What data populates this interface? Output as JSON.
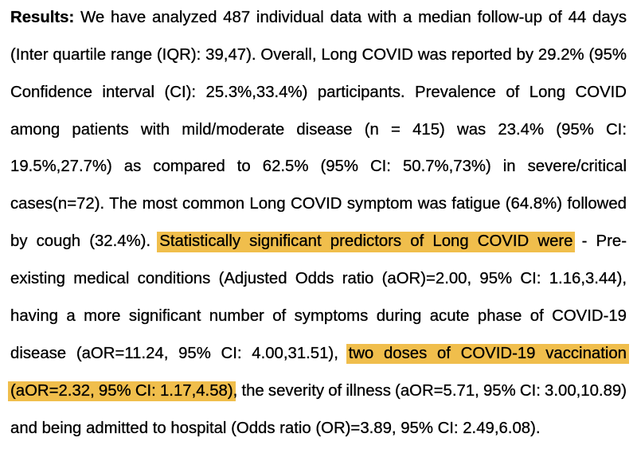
{
  "page": {
    "background_color": "#ffffff",
    "text_color": "#000000",
    "highlight_color": "#f0be4c"
  },
  "document": {
    "section_label": "Results:",
    "full_text": "Results: We have analyzed 487 individual data with a median follow-up of 44 days (Inter quartile range (IQR): 39,47). Overall, Long COVID was reported by 29.2% (95% Confidence interval (CI): 25.3%,33.4%) participants. Prevalence of Long COVID among patients with mild/moderate disease (n = 415) was 23.4% (95% CI: 19.5%,27.7%) as compared to 62.5% (95% CI: 50.7%,73%) in severe/critical cases(n=72). The most common Long COVID symptom was fatigue (64.8%) followed by cough (32.4%). Statistically significant predictors of Long COVID were - Pre-existing medical conditions (Adjusted Odds ratio (aOR)=2.00, 95% CI: 1.16,3.44), having a more significant number of symptoms during acute phase of COVID-19 disease (aOR=11.24, 95% CI: 4.00,31.51), two doses of COVID-19 vaccination (aOR=2.32, 95% CI: 1.17,4.58), the severity of illness (aOR=5.71, 95% CI: 3.00,10.89) and being admitted to hospital (Odds ratio (OR)=3.89, 95% CI: 2.49,6.08).",
    "highlighted_phrases": [
      "Statistically significant predictors of Long COVID were",
      "two doses of COVID-19 vaccination (aOR=2.32, 95% CI: 1.17,4.58)"
    ],
    "lines": [
      {
        "justify": true,
        "segments": [
          {
            "text": "Results:",
            "bold": true
          },
          {
            "text": " We have analyzed 487 individual data with a median follow-up of 44 days"
          }
        ]
      },
      {
        "justify": true,
        "segments": [
          {
            "text": "(Inter quartile range (IQR): 39,47). Overall, Long COVID was reported by 29.2% (95%"
          }
        ]
      },
      {
        "justify": true,
        "segments": [
          {
            "text": "Confidence interval (CI): 25.3%,33.4%) participants. Prevalence of Long COVID"
          }
        ]
      },
      {
        "justify": true,
        "segments": [
          {
            "text": "among patients with mild/moderate disease (n = 415) was 23.4% (95% CI:"
          }
        ]
      },
      {
        "justify": true,
        "segments": [
          {
            "text": "19.5%,27.7%) as compared to 62.5% (95% CI: 50.7%,73%) in severe/critical"
          }
        ]
      },
      {
        "justify": true,
        "segments": [
          {
            "text": "cases(n=72). The most common Long COVID symptom was fatigue (64.8%) followed"
          }
        ]
      },
      {
        "justify": true,
        "segments": [
          {
            "text": "by cough (32.4%). "
          },
          {
            "text": "Statistically significant predictors of Long COVID were",
            "highlight": true
          },
          {
            "text": " - Pre-"
          }
        ]
      },
      {
        "justify": true,
        "segments": [
          {
            "text": "existing medical conditions (Adjusted Odds ratio (aOR)=2.00, 95% CI: 1.16,3.44),"
          }
        ]
      },
      {
        "justify": true,
        "segments": [
          {
            "text": "having a more significant number of symptoms during acute phase of COVID-19"
          }
        ]
      },
      {
        "justify": true,
        "segments": [
          {
            "text": "disease (aOR=11.24, 95% CI: 4.00,31.51), "
          },
          {
            "text": "two doses of COVID-19 vaccination",
            "highlight": true
          }
        ]
      },
      {
        "justify": true,
        "segments": [
          {
            "text": "(aOR=2.32, 95% CI: 1.17,4.58)",
            "highlight": true
          },
          {
            "text": ", the severity of illness (aOR=5.71, 95% CI: 3.00,10.89)"
          }
        ]
      },
      {
        "justify": false,
        "segments": [
          {
            "text": "and being admitted to hospital (Odds ratio (OR)=3.89, 95% CI: 2.49,6.08)."
          }
        ]
      }
    ]
  }
}
